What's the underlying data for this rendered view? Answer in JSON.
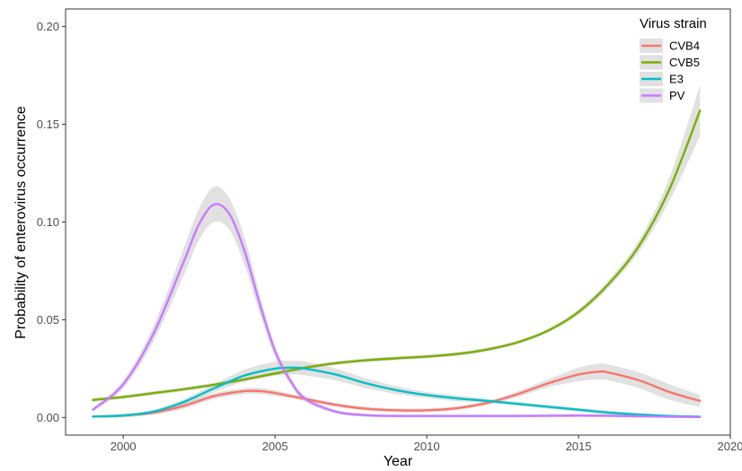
{
  "chart_data": {
    "type": "line",
    "title": "",
    "xlabel": "Year",
    "ylabel": "Probability of enterovirus occurrence",
    "xlim": [
      1998.1,
      2020.0
    ],
    "ylim": [
      -0.009,
      0.209
    ],
    "xticks": [
      2000,
      2005,
      2010,
      2015,
      2020
    ],
    "xtick_labels": [
      "2000",
      "2005",
      "2010",
      "2015",
      "2020"
    ],
    "yticks": [
      0,
      0.05,
      0.1,
      0.15,
      0.2
    ],
    "ytick_labels": [
      "0.00",
      "0.05",
      "0.10",
      "0.15",
      "0.20"
    ],
    "grid": false,
    "confidence_band": true,
    "legend": {
      "title": "Virus strain",
      "placement": "top-right"
    },
    "series": [
      {
        "name": "CVB4",
        "color": "#f8766d",
        "x": [
          1999,
          2000,
          2001,
          2002,
          2003,
          2004,
          2004.5,
          2005,
          2006,
          2007,
          2008,
          2009,
          2010,
          2011,
          2012,
          2013,
          2014,
          2015,
          2015.7,
          2016,
          2017,
          2018,
          2019
        ],
        "y": [
          0.0005,
          0.001,
          0.0025,
          0.006,
          0.011,
          0.0135,
          0.0135,
          0.0125,
          0.0095,
          0.0065,
          0.0045,
          0.0037,
          0.0037,
          0.0048,
          0.0075,
          0.012,
          0.0175,
          0.022,
          0.0235,
          0.023,
          0.019,
          0.013,
          0.0085
        ],
        "band": [
          0.0005,
          0.001,
          0.001,
          0.0015,
          0.0015,
          0.0015,
          0.0015,
          0.0015,
          0.001,
          0.001,
          0.001,
          0.001,
          0.001,
          0.001,
          0.001,
          0.0015,
          0.002,
          0.0035,
          0.004,
          0.004,
          0.004,
          0.004,
          0.003
        ]
      },
      {
        "name": "CVB5",
        "color": "#7cae00",
        "x": [
          1999,
          2000,
          2001,
          2002,
          2003,
          2004,
          2005,
          2006,
          2007,
          2008,
          2009,
          2010,
          2011,
          2012,
          2013,
          2014,
          2015,
          2016,
          2017,
          2018,
          2019
        ],
        "y": [
          0.009,
          0.0105,
          0.0125,
          0.0145,
          0.0168,
          0.0195,
          0.0225,
          0.0255,
          0.0278,
          0.0293,
          0.0303,
          0.0312,
          0.0325,
          0.0348,
          0.0385,
          0.0445,
          0.054,
          0.0685,
          0.088,
          0.117,
          0.157
        ],
        "band": [
          0.001,
          0.001,
          0.001,
          0.001,
          0.001,
          0.001,
          0.001,
          0.001,
          0.001,
          0.001,
          0.001,
          0.001,
          0.001,
          0.001,
          0.001,
          0.001,
          0.0015,
          0.002,
          0.003,
          0.006,
          0.013
        ]
      },
      {
        "name": "E3",
        "color": "#00bfc4",
        "x": [
          1999,
          2000,
          2001,
          2002,
          2003,
          2004,
          2005,
          2005.6,
          2006,
          2007,
          2008,
          2009,
          2010,
          2011,
          2012,
          2013,
          2014,
          2015,
          2016,
          2017,
          2018,
          2019
        ],
        "y": [
          0.0005,
          0.001,
          0.003,
          0.008,
          0.015,
          0.0215,
          0.025,
          0.0255,
          0.025,
          0.022,
          0.0175,
          0.014,
          0.0115,
          0.0098,
          0.0085,
          0.007,
          0.0055,
          0.004,
          0.0025,
          0.0015,
          0.0008,
          0.0004
        ],
        "band": [
          0.0005,
          0.0005,
          0.001,
          0.0015,
          0.002,
          0.003,
          0.0035,
          0.0035,
          0.0035,
          0.003,
          0.0025,
          0.002,
          0.0015,
          0.0015,
          0.001,
          0.001,
          0.001,
          0.001,
          0.001,
          0.0008,
          0.0006,
          0.0005
        ]
      },
      {
        "name": "PV",
        "color": "#c77cff",
        "x": [
          1999,
          2000,
          2001,
          2002,
          2002.5,
          2003,
          2003.5,
          2004,
          2004.5,
          2005,
          2005.5,
          2006,
          2007,
          2008,
          2009,
          2010,
          2011,
          2012,
          2013,
          2014,
          2015,
          2016,
          2017,
          2018,
          2019
        ],
        "y": [
          0.004,
          0.017,
          0.043,
          0.08,
          0.099,
          0.109,
          0.104,
          0.085,
          0.058,
          0.034,
          0.019,
          0.0095,
          0.003,
          0.0012,
          0.0008,
          0.0008,
          0.0008,
          0.0008,
          0.0008,
          0.0009,
          0.001,
          0.0009,
          0.0006,
          0.0004,
          0.0002
        ],
        "band": [
          0.001,
          0.002,
          0.004,
          0.007,
          0.008,
          0.009,
          0.008,
          0.007,
          0.005,
          0.003,
          0.002,
          0.0015,
          0.001,
          0.0008,
          0.0008,
          0.0008,
          0.0008,
          0.0008,
          0.0008,
          0.0008,
          0.0008,
          0.0008,
          0.0006,
          0.0005,
          0.0004
        ]
      }
    ]
  }
}
